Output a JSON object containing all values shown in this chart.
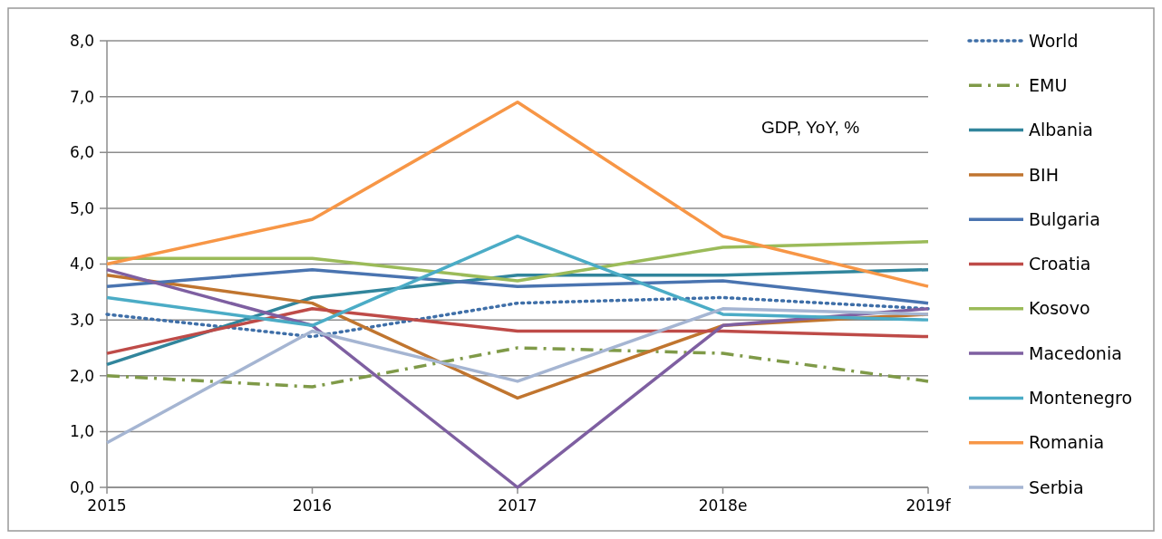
{
  "chart_data": {
    "type": "line",
    "categories": [
      "2015",
      "2016",
      "2017",
      "2018e",
      "2019f"
    ],
    "ylim": [
      0,
      8
    ],
    "yticks": [
      {
        "value": 0,
        "label": "0,0"
      },
      {
        "value": 1,
        "label": "1,0"
      },
      {
        "value": 2,
        "label": "2,0"
      },
      {
        "value": 3,
        "label": "3,0"
      },
      {
        "value": 4,
        "label": "4,0"
      },
      {
        "value": 5,
        "label": "5,0"
      },
      {
        "value": 6,
        "label": "6,0"
      },
      {
        "value": 7,
        "label": "7,0"
      },
      {
        "value": 8,
        "label": "8,0"
      }
    ],
    "grid": "y",
    "legend": "right",
    "annotations": [
      "GDP, YoY, %"
    ],
    "series": [
      {
        "name": "World",
        "color": "#3f6fa8",
        "line_style": "dotted",
        "values": [
          3.1,
          2.7,
          3.3,
          3.4,
          3.2
        ]
      },
      {
        "name": "EMU",
        "color": "#7f9a48",
        "line_style": "dashed",
        "values": [
          2.0,
          1.8,
          2.5,
          2.4,
          1.9
        ]
      },
      {
        "name": "Albania",
        "color": "#31859c",
        "values": [
          2.2,
          3.4,
          3.8,
          3.8,
          3.9
        ]
      },
      {
        "name": "BIH",
        "color": "#c0752f",
        "values": [
          3.8,
          3.3,
          1.6,
          2.9,
          3.1
        ]
      },
      {
        "name": "Bulgaria",
        "color": "#4a74b0",
        "values": [
          3.6,
          3.9,
          3.6,
          3.7,
          3.3
        ]
      },
      {
        "name": "Croatia",
        "color": "#be4b48",
        "values": [
          2.4,
          3.2,
          2.8,
          2.8,
          2.7
        ]
      },
      {
        "name": "Kosovo",
        "color": "#9bbb59",
        "values": [
          4.1,
          4.1,
          3.7,
          4.3,
          4.4
        ]
      },
      {
        "name": "Macedonia",
        "color": "#7e5fa1",
        "values": [
          3.9,
          2.9,
          0.0,
          2.9,
          3.2
        ]
      },
      {
        "name": "Montenegro",
        "color": "#4bacc6",
        "values": [
          3.4,
          2.9,
          4.5,
          3.1,
          3.0
        ]
      },
      {
        "name": "Romania",
        "color": "#f79646",
        "values": [
          4.0,
          4.8,
          6.9,
          4.5,
          3.6
        ]
      },
      {
        "name": "Serbia",
        "color": "#a5b5d2",
        "values": [
          0.8,
          2.8,
          1.9,
          3.2,
          3.1
        ]
      }
    ]
  }
}
